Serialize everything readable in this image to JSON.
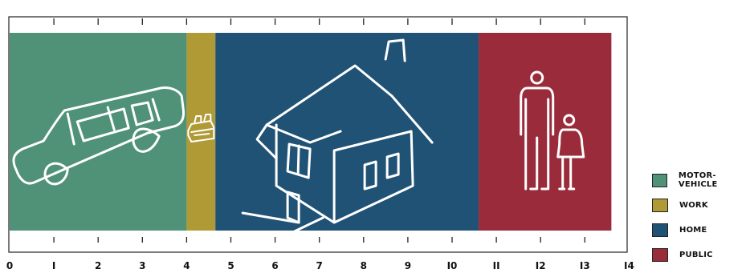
{
  "chart_data": {
    "type": "bar",
    "orientation": "horizontal-stacked",
    "xlim": [
      0,
      14
    ],
    "x_ticks": [
      0,
      1,
      2,
      3,
      4,
      5,
      6,
      7,
      8,
      9,
      10,
      11,
      12,
      13,
      14
    ],
    "tick_labels": [
      "0",
      "I",
      "2",
      "3",
      "4",
      "5",
      "6",
      "7",
      "8",
      "9",
      "I0",
      "II",
      "I2",
      "I3",
      "I4"
    ],
    "title": "",
    "xlabel": "",
    "ylabel": "",
    "legend_position": "bottom-right",
    "grid": false,
    "segments": [
      {
        "name": "MOTOR-VEHICLE",
        "value": 4.0,
        "color": "#4f9278",
        "icon": "car-icon"
      },
      {
        "name": "WORK",
        "value": 0.65,
        "color": "#b09a35",
        "icon": "machine-icon"
      },
      {
        "name": "HOME",
        "value": 5.95,
        "color": "#205275",
        "icon": "house-icon"
      },
      {
        "name": "PUBLIC",
        "value": 3.0,
        "color": "#9a2b3b",
        "icon": "people-icon"
      }
    ]
  }
}
